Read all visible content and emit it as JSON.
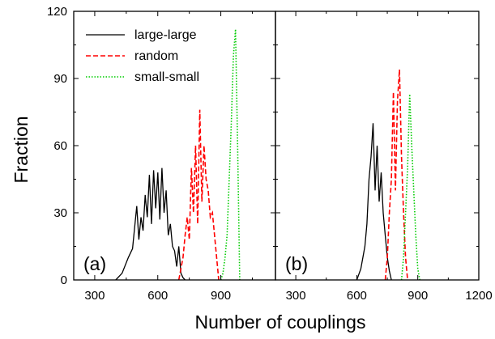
{
  "chart_data": {
    "type": "line",
    "xlabel": "Number of couplings",
    "ylabel": "Fraction",
    "ylim": [
      0,
      120
    ],
    "yticks": [
      0,
      30,
      60,
      90,
      120
    ],
    "series_styles": [
      {
        "name": "large-large",
        "color": "#000000",
        "dash": "solid"
      },
      {
        "name": "random",
        "color": "#ff0000",
        "dash": "dashed"
      },
      {
        "name": "small-small",
        "color": "#00cc00",
        "dash": "dotted"
      }
    ],
    "legend": {
      "position": "top-left",
      "panel": "a"
    },
    "panels": [
      {
        "label": "(a)",
        "xlim": [
          200,
          1160
        ],
        "xticks": [
          300,
          600,
          900
        ],
        "series": [
          {
            "name": "large-large",
            "x": [
              400,
              430,
              460,
              480,
              500,
              510,
              520,
              530,
              540,
              550,
              560,
              570,
              580,
              590,
              600,
              610,
              620,
              630,
              640,
              650,
              660,
              670,
              680,
              690,
              700,
              710,
              720,
              730
            ],
            "y": [
              0,
              3,
              10,
              14,
              33,
              18,
              28,
              22,
              38,
              28,
              47,
              25,
              49,
              32,
              48,
              27,
              50,
              30,
              40,
              20,
              25,
              15,
              13,
              6,
              15,
              3,
              1,
              0
            ]
          },
          {
            "name": "random",
            "x": [
              700,
              710,
              720,
              730,
              740,
              750,
              760,
              770,
              780,
              790,
              800,
              810,
              820,
              830,
              840,
              850,
              860,
              870,
              880,
              890
            ],
            "y": [
              0,
              5,
              10,
              20,
              28,
              18,
              50,
              30,
              60,
              25,
              76,
              35,
              60,
              45,
              40,
              28,
              30,
              20,
              10,
              0
            ]
          },
          {
            "name": "small-small",
            "x": [
              900,
              910,
              920,
              930,
              940,
              950,
              960,
              970,
              980,
              990
            ],
            "y": [
              0,
              3,
              10,
              20,
              45,
              70,
              100,
              112,
              60,
              0
            ]
          }
        ]
      },
      {
        "label": "(b)",
        "xlim": [
          200,
          1200
        ],
        "xticks": [
          300,
          600,
          900,
          1200
        ],
        "series": [
          {
            "name": "large-large",
            "x": [
              600,
              620,
              640,
              650,
              660,
              670,
              680,
              690,
              700,
              710,
              720,
              730,
              740,
              750,
              760,
              770
            ],
            "y": [
              0,
              5,
              15,
              25,
              45,
              55,
              70,
              40,
              60,
              35,
              48,
              30,
              20,
              10,
              4,
              0
            ]
          },
          {
            "name": "random",
            "x": [
              740,
              750,
              760,
              770,
              780,
              790,
              800,
              810,
              820,
              830,
              840,
              850
            ],
            "y": [
              0,
              10,
              30,
              45,
              84,
              40,
              80,
              94,
              55,
              30,
              10,
              0
            ]
          },
          {
            "name": "small-small",
            "x": [
              820,
              830,
              840,
              850,
              860,
              870,
              880,
              890,
              900,
              910
            ],
            "y": [
              0,
              10,
              30,
              50,
              83,
              60,
              40,
              20,
              5,
              0
            ]
          }
        ]
      }
    ]
  }
}
